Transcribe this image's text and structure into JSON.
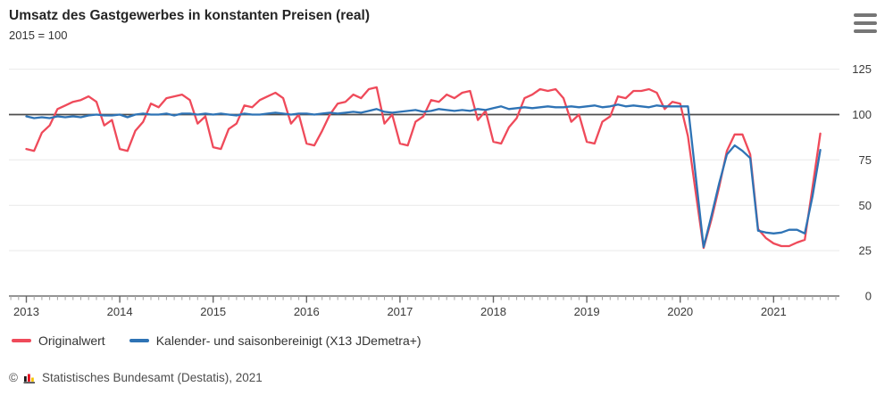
{
  "header": {
    "title": "Umsatz des Gastgewerbes in konstanten Preisen (real)",
    "subtitle": "2015 = 100",
    "menu_icon": "hamburger-icon"
  },
  "chart_data": {
    "type": "line",
    "title": "Umsatz des Gastgewerbes in konstanten Preisen (real)",
    "index_note": "2015 = 100",
    "frequency": "monthly",
    "x_start": "2013-01",
    "x_end": "2021-07",
    "year_ticks": [
      2013,
      2014,
      2015,
      2016,
      2017,
      2018,
      2019,
      2020,
      2021
    ],
    "y_ticks": [
      0,
      25,
      50,
      75,
      100,
      125
    ],
    "ylim": [
      0,
      133
    ],
    "reference_line": 100,
    "grid": "horizontal-light",
    "legend_position": "bottom-left",
    "y_axis_side": "right",
    "series": [
      {
        "name": "Originalwert",
        "color": "#ef4a5a",
        "values": [
          81,
          80,
          90,
          94,
          103,
          105,
          107,
          108,
          110,
          107,
          94,
          97,
          81,
          80,
          91,
          96,
          106,
          104,
          109,
          110,
          111,
          108,
          95,
          99,
          82,
          81,
          92,
          95,
          105,
          104,
          108,
          110,
          112,
          109,
          95,
          100,
          84,
          83,
          91,
          100,
          106,
          107,
          111,
          109,
          114,
          115,
          95,
          100,
          84,
          83,
          96,
          99,
          108,
          107,
          111,
          109,
          112,
          113,
          97,
          102,
          85,
          84,
          93,
          98,
          109,
          111,
          114,
          113,
          114,
          109,
          96,
          100,
          85,
          84,
          96,
          99,
          110,
          109,
          113,
          113,
          114,
          112,
          103,
          107,
          106,
          88,
          57,
          26.5,
          42,
          60,
          80,
          89,
          89,
          78,
          37,
          32,
          29,
          27.5,
          27.5,
          29.5,
          31,
          60,
          89.5
        ]
      },
      {
        "name": "Kalender- und saisonbereinigt (X13 JDemetra+)",
        "color": "#2e73b5",
        "values": [
          99,
          98,
          98.5,
          98,
          99,
          98.5,
          99,
          98.5,
          99.5,
          100,
          99.5,
          99.5,
          100,
          98.5,
          100,
          100.5,
          100,
          100,
          100.5,
          99.5,
          100.5,
          100.5,
          100,
          100.5,
          100,
          100.5,
          100,
          99.5,
          100.5,
          100,
          100,
          100.5,
          101,
          100.5,
          100,
          100.5,
          100.5,
          100,
          100.5,
          101,
          100.5,
          101,
          101.5,
          101,
          102,
          103,
          101.5,
          101,
          101.5,
          102,
          102.5,
          101.5,
          102,
          103,
          102.5,
          102,
          102.5,
          102,
          103,
          102.5,
          103.5,
          104.5,
          103,
          103.5,
          104,
          103.5,
          104,
          104.5,
          104,
          104,
          104.5,
          104,
          104.5,
          105,
          104,
          104.5,
          105.5,
          104.5,
          105,
          104.5,
          104,
          105,
          104.5,
          104.5,
          104.5,
          104.5,
          66,
          27,
          44,
          62,
          78,
          83,
          80,
          76,
          36,
          35,
          34.5,
          35,
          36.5,
          36.5,
          34.5,
          55,
          80.5
        ]
      }
    ]
  },
  "legend": {
    "items": [
      {
        "label": "Originalwert",
        "color": "#ef4a5a"
      },
      {
        "label": "Kalender- und saisonbereinigt (X13 JDemetra+)",
        "color": "#2e73b5"
      }
    ]
  },
  "footer": {
    "copyright": "©",
    "logo_icon": "destatis-bars-icon",
    "source": "Statistisches Bundesamt (Destatis), 2021"
  }
}
